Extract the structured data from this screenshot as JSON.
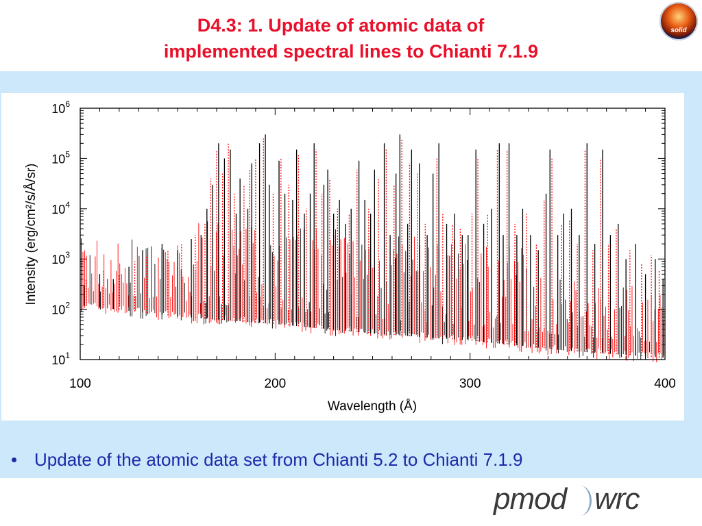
{
  "slide": {
    "title_line1": "D4.3: 1. Update of atomic data of",
    "title_line2": "implemented spectral lines to Chianti 7.1.9",
    "logo_text": "solid",
    "bullet_marker": "•",
    "bullet_text": "Update of the atomic data set from Chianti 5.2 to Chianti 7.1.9",
    "footer_logo_left": "pmod",
    "footer_logo_right": "wrc",
    "colors": {
      "title": "#e8102a",
      "band": "#cde8fb",
      "bullet": "#1a2aa8",
      "series_new": "#ff0000",
      "series_old": "#000000"
    }
  },
  "chart_data": {
    "type": "line",
    "xlabel": "Wavelength (Å)",
    "ylabel": "Intensity (erg/cm²/s/Å/sr)",
    "xlim": [
      100,
      400
    ],
    "ylim": [
      10,
      1000000
    ],
    "yscale": "log",
    "x_ticks": [
      "100",
      "200",
      "300",
      "400"
    ],
    "y_ticks": [
      {
        "base": "10",
        "exp": "1"
      },
      {
        "base": "10",
        "exp": "2"
      },
      {
        "base": "10",
        "exp": "3"
      },
      {
        "base": "10",
        "exp": "4"
      },
      {
        "base": "10",
        "exp": "5"
      },
      {
        "base": "10",
        "exp": "6"
      }
    ],
    "continuum": {
      "x": [
        100,
        150,
        200,
        250,
        300,
        350,
        400
      ],
      "y": [
        200,
        120,
        85,
        55,
        40,
        25,
        18
      ]
    },
    "series": [
      {
        "style": "solid",
        "color": "#000000",
        "lines": [
          {
            "x": 102,
            "y": 300
          },
          {
            "x": 110,
            "y": 500
          },
          {
            "x": 117,
            "y": 400
          },
          {
            "x": 125,
            "y": 700
          },
          {
            "x": 132,
            "y": 1500
          },
          {
            "x": 142,
            "y": 2000
          },
          {
            "x": 150,
            "y": 1500
          },
          {
            "x": 157,
            "y": 2500
          },
          {
            "x": 162,
            "y": 3000
          },
          {
            "x": 165,
            "y": 10000
          },
          {
            "x": 168,
            "y": 30000
          },
          {
            "x": 171,
            "y": 200000
          },
          {
            "x": 174,
            "y": 100000
          },
          {
            "x": 177,
            "y": 150000
          },
          {
            "x": 180,
            "y": 8000
          },
          {
            "x": 182,
            "y": 40000
          },
          {
            "x": 186,
            "y": 10000
          },
          {
            "x": 188,
            "y": 80000
          },
          {
            "x": 192,
            "y": 200000
          },
          {
            "x": 195,
            "y": 300000
          },
          {
            "x": 197,
            "y": 30000
          },
          {
            "x": 202,
            "y": 90000
          },
          {
            "x": 205,
            "y": 20000
          },
          {
            "x": 209,
            "y": 15000
          },
          {
            "x": 211,
            "y": 150000
          },
          {
            "x": 215,
            "y": 8000
          },
          {
            "x": 218,
            "y": 20000
          },
          {
            "x": 220,
            "y": 200000
          },
          {
            "x": 225,
            "y": 30000
          },
          {
            "x": 227,
            "y": 60000
          },
          {
            "x": 230,
            "y": 8000
          },
          {
            "x": 233,
            "y": 15000
          },
          {
            "x": 236,
            "y": 5000
          },
          {
            "x": 239,
            "y": 10000
          },
          {
            "x": 243,
            "y": 90000
          },
          {
            "x": 246,
            "y": 15000
          },
          {
            "x": 249,
            "y": 8000
          },
          {
            "x": 251,
            "y": 60000
          },
          {
            "x": 256,
            "y": 200000
          },
          {
            "x": 259,
            "y": 3000
          },
          {
            "x": 262,
            "y": 50000
          },
          {
            "x": 264,
            "y": 300000
          },
          {
            "x": 268,
            "y": 5000
          },
          {
            "x": 270,
            "y": 150000
          },
          {
            "x": 274,
            "y": 80000
          },
          {
            "x": 278,
            "y": 3000
          },
          {
            "x": 281,
            "y": 50000
          },
          {
            "x": 284,
            "y": 200000
          },
          {
            "x": 288,
            "y": 5000
          },
          {
            "x": 292,
            "y": 8000
          },
          {
            "x": 296,
            "y": 3000
          },
          {
            "x": 299,
            "y": 3000
          },
          {
            "x": 303,
            "y": 150000
          },
          {
            "x": 307,
            "y": 5000
          },
          {
            "x": 311,
            "y": 10000
          },
          {
            "x": 315,
            "y": 200000
          },
          {
            "x": 317,
            "y": 3000
          },
          {
            "x": 320,
            "y": 200000
          },
          {
            "x": 324,
            "y": 3000
          },
          {
            "x": 327,
            "y": 10000
          },
          {
            "x": 331,
            "y": 3000
          },
          {
            "x": 335,
            "y": 1500
          },
          {
            "x": 339,
            "y": 20000
          },
          {
            "x": 341,
            "y": 150000
          },
          {
            "x": 345,
            "y": 3000
          },
          {
            "x": 348,
            "y": 8000
          },
          {
            "x": 352,
            "y": 10000
          },
          {
            "x": 356,
            "y": 3000
          },
          {
            "x": 360,
            "y": 200000
          },
          {
            "x": 364,
            "y": 2000
          },
          {
            "x": 368,
            "y": 150000
          },
          {
            "x": 372,
            "y": 3000
          },
          {
            "x": 376,
            "y": 5000
          },
          {
            "x": 380,
            "y": 1000
          },
          {
            "x": 385,
            "y": 2000
          },
          {
            "x": 390,
            "y": 500
          },
          {
            "x": 395,
            "y": 1000
          },
          {
            "x": 399,
            "y": 400
          }
        ]
      },
      {
        "style": "dotted",
        "color": "#ff0000",
        "lines": [
          {
            "x": 103,
            "y": 400
          },
          {
            "x": 112,
            "y": 600
          },
          {
            "x": 120,
            "y": 500
          },
          {
            "x": 128,
            "y": 900
          },
          {
            "x": 134,
            "y": 1200
          },
          {
            "x": 145,
            "y": 1500
          },
          {
            "x": 152,
            "y": 2000
          },
          {
            "x": 159,
            "y": 3000
          },
          {
            "x": 164,
            "y": 5000
          },
          {
            "x": 167,
            "y": 40000
          },
          {
            "x": 170,
            "y": 150000
          },
          {
            "x": 173,
            "y": 50000
          },
          {
            "x": 176,
            "y": 200000
          },
          {
            "x": 179,
            "y": 20000
          },
          {
            "x": 184,
            "y": 30000
          },
          {
            "x": 187,
            "y": 60000
          },
          {
            "x": 190,
            "y": 100000
          },
          {
            "x": 194,
            "y": 250000
          },
          {
            "x": 199,
            "y": 20000
          },
          {
            "x": 203,
            "y": 100000
          },
          {
            "x": 207,
            "y": 30000
          },
          {
            "x": 212,
            "y": 120000
          },
          {
            "x": 216,
            "y": 10000
          },
          {
            "x": 221,
            "y": 150000
          },
          {
            "x": 224,
            "y": 20000
          },
          {
            "x": 228,
            "y": 40000
          },
          {
            "x": 232,
            "y": 10000
          },
          {
            "x": 238,
            "y": 8000
          },
          {
            "x": 242,
            "y": 60000
          },
          {
            "x": 248,
            "y": 10000
          },
          {
            "x": 253,
            "y": 40000
          },
          {
            "x": 257,
            "y": 150000
          },
          {
            "x": 261,
            "y": 30000
          },
          {
            "x": 265,
            "y": 250000
          },
          {
            "x": 269,
            "y": 80000
          },
          {
            "x": 273,
            "y": 50000
          },
          {
            "x": 277,
            "y": 5000
          },
          {
            "x": 283,
            "y": 100000
          },
          {
            "x": 286,
            "y": 8000
          },
          {
            "x": 291,
            "y": 5000
          },
          {
            "x": 295,
            "y": 4000
          },
          {
            "x": 301,
            "y": 8000
          },
          {
            "x": 304,
            "y": 100000
          },
          {
            "x": 309,
            "y": 8000
          },
          {
            "x": 314,
            "y": 150000
          },
          {
            "x": 319,
            "y": 150000
          },
          {
            "x": 323,
            "y": 5000
          },
          {
            "x": 329,
            "y": 8000
          },
          {
            "x": 334,
            "y": 2000
          },
          {
            "x": 338,
            "y": 15000
          },
          {
            "x": 342,
            "y": 100000
          },
          {
            "x": 347,
            "y": 5000
          },
          {
            "x": 351,
            "y": 6000
          },
          {
            "x": 355,
            "y": 2000
          },
          {
            "x": 359,
            "y": 150000
          },
          {
            "x": 363,
            "y": 1500
          },
          {
            "x": 367,
            "y": 100000
          },
          {
            "x": 371,
            "y": 2000
          },
          {
            "x": 375,
            "y": 4000
          },
          {
            "x": 382,
            "y": 1500
          },
          {
            "x": 388,
            "y": 800
          },
          {
            "x": 393,
            "y": 1200
          },
          {
            "x": 397,
            "y": 600
          }
        ]
      }
    ]
  }
}
